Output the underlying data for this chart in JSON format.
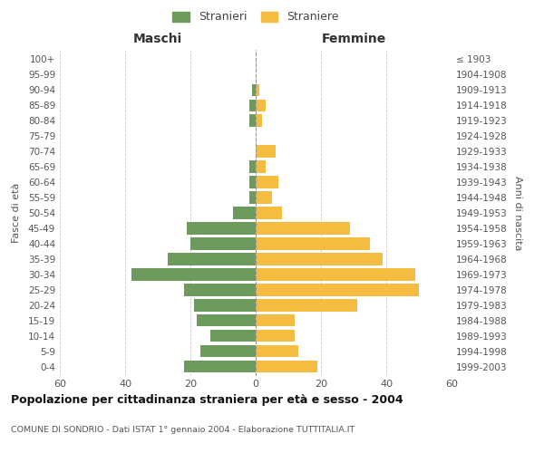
{
  "age_groups": [
    "0-4",
    "5-9",
    "10-14",
    "15-19",
    "20-24",
    "25-29",
    "30-34",
    "35-39",
    "40-44",
    "45-49",
    "50-54",
    "55-59",
    "60-64",
    "65-69",
    "70-74",
    "75-79",
    "80-84",
    "85-89",
    "90-94",
    "95-99",
    "100+"
  ],
  "birth_years": [
    "1999-2003",
    "1994-1998",
    "1989-1993",
    "1984-1988",
    "1979-1983",
    "1974-1978",
    "1969-1973",
    "1964-1968",
    "1959-1963",
    "1954-1958",
    "1949-1953",
    "1944-1948",
    "1939-1943",
    "1934-1938",
    "1929-1933",
    "1924-1928",
    "1919-1923",
    "1914-1918",
    "1909-1913",
    "1904-1908",
    "≤ 1903"
  ],
  "males": [
    22,
    17,
    14,
    18,
    19,
    22,
    38,
    27,
    20,
    21,
    7,
    2,
    2,
    2,
    0,
    0,
    2,
    2,
    1,
    0,
    0
  ],
  "females": [
    19,
    13,
    12,
    12,
    31,
    50,
    49,
    39,
    35,
    29,
    8,
    5,
    7,
    3,
    6,
    0,
    2,
    3,
    1,
    0,
    0
  ],
  "male_color": "#6d9b5e",
  "female_color": "#f5bc42",
  "background_color": "#ffffff",
  "grid_color": "#cccccc",
  "title": "Popolazione per cittadinanza straniera per età e sesso - 2004",
  "subtitle": "COMUNE DI SONDRIO - Dati ISTAT 1° gennaio 2004 - Elaborazione TUTTITALIA.IT",
  "left_label": "Maschi",
  "right_label": "Femmine",
  "y_left_label": "Fasce di età",
  "y_right_label": "Anni di nascita",
  "legend_male": "Stranieri",
  "legend_female": "Straniere",
  "xlim": 60
}
